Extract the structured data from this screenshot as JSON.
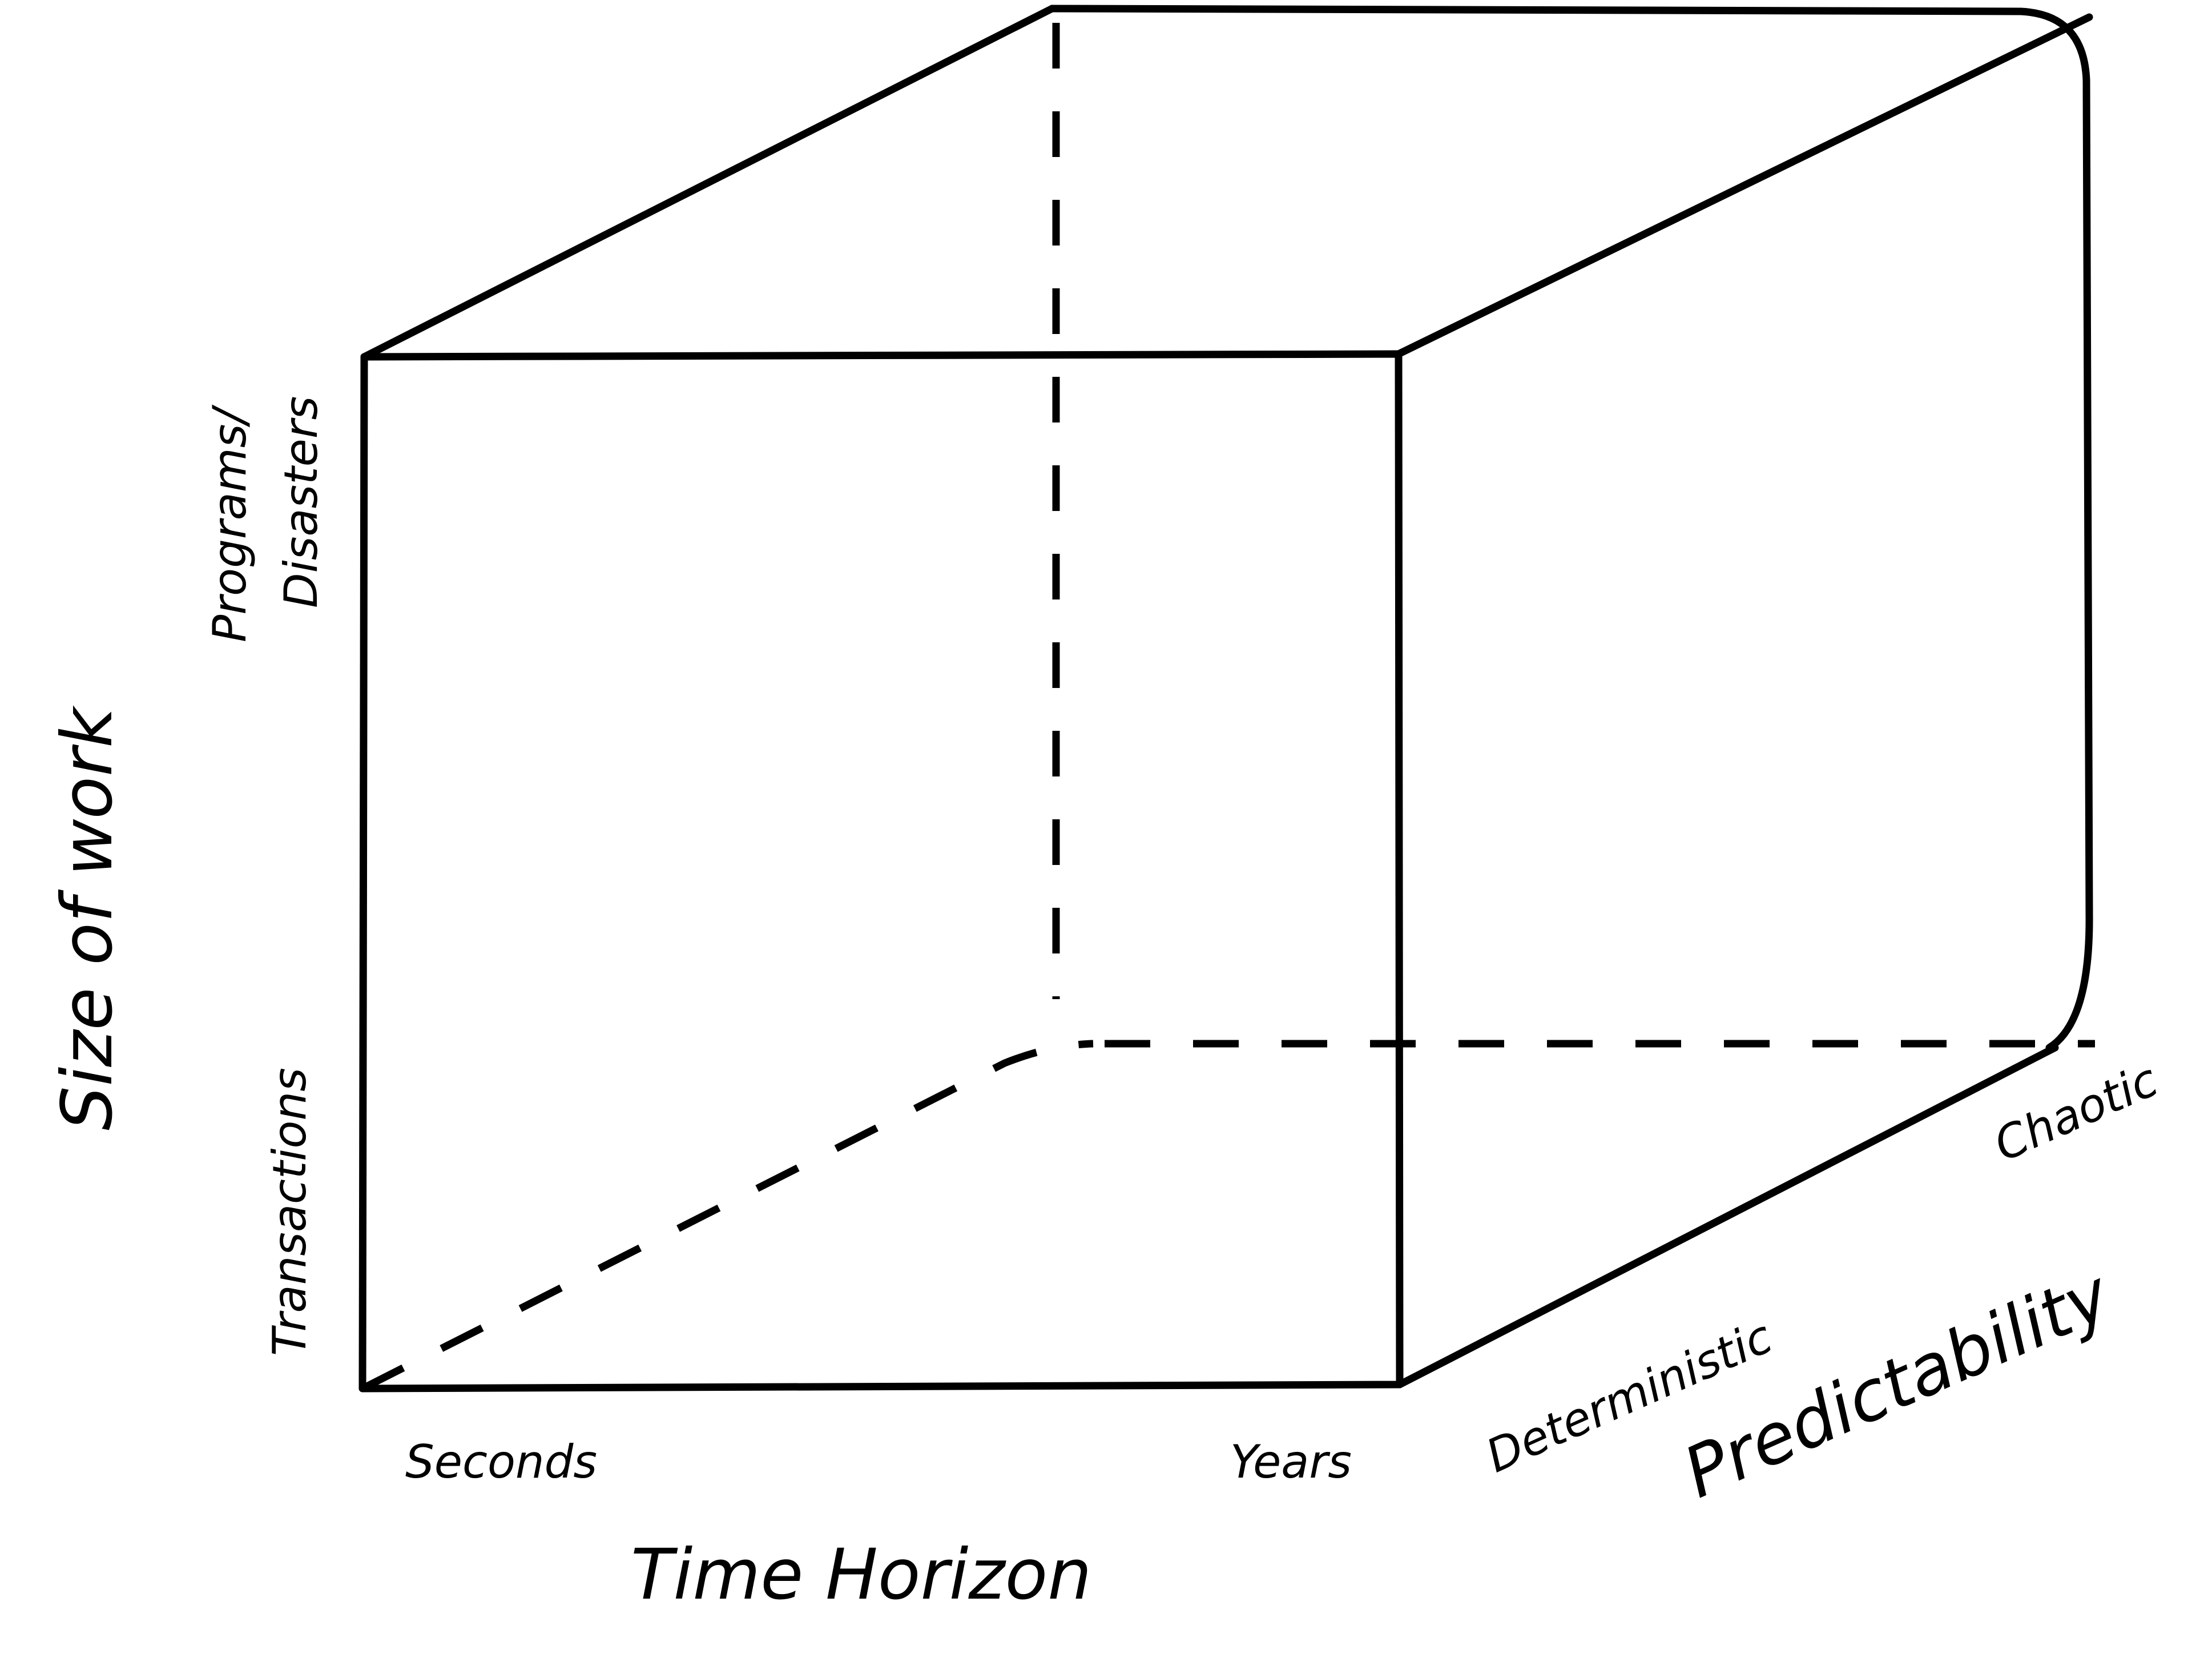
{
  "diagram": {
    "axes": {
      "vertical": {
        "title": "Size of work",
        "low_label": "Transactions",
        "high_label_line1": "Programs/",
        "high_label_line2": "Disasters"
      },
      "horizontal": {
        "title": "Time Horizon",
        "low_label": "Seconds",
        "high_label": "Years"
      },
      "depth": {
        "title": "Predictability",
        "low_label": "Deterministic",
        "high_label": "Chaotic"
      }
    },
    "colors": {
      "line": "#000000",
      "background": "#ffffff"
    }
  }
}
